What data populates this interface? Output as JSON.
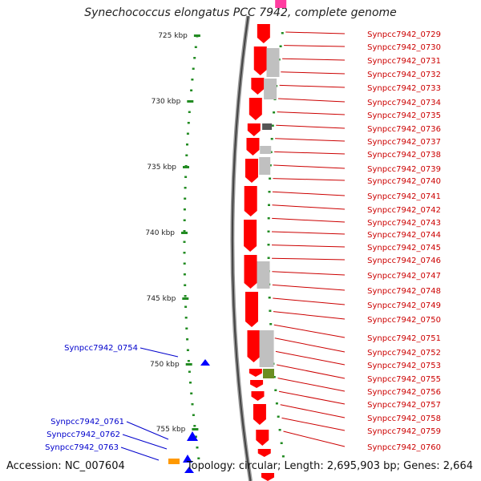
{
  "title": "Synechococcus elongatus PCC 7942, complete genome",
  "footer": {
    "accession": "Accession: NC_007604",
    "summary": "Topology: circular; Length: 2,695,903 bp; Genes: 2,664"
  },
  "colors": {
    "forward_cds": "#ff0000",
    "gray_feature": "#c0c0c0",
    "dark_feature": "#555555",
    "olive_feature": "#6b8e23",
    "reverse_cds": "#0000ff",
    "orange_feature": "#ff9900",
    "magenta_feature": "#ff3ca0",
    "green_ticks": "#228b22",
    "label_right": "#cc0000",
    "label_left": "#0000cc"
  },
  "scale_labels": [
    "725 kbp",
    "730 kbp",
    "735 kbp",
    "740 kbp",
    "745 kbp",
    "750 kbp",
    "755 kbp"
  ],
  "right_labels": [
    "Synpcc7942_0729",
    "Synpcc7942_0730",
    "Synpcc7942_0731",
    "Synpcc7942_0732",
    "Synpcc7942_0733",
    "Synpcc7942_0734",
    "Synpcc7942_0735",
    "Synpcc7942_0736",
    "Synpcc7942_0737",
    "Synpcc7942_0738",
    "Synpcc7942_0739",
    "Synpcc7942_0740",
    "Synpcc7942_0741",
    "Synpcc7942_0742",
    "Synpcc7942_0743",
    "Synpcc7942_0744",
    "Synpcc7942_0745",
    "Synpcc7942_0746",
    "Synpcc7942_0747",
    "Synpcc7942_0748",
    "Synpcc7942_0749",
    "Synpcc7942_0750",
    "Synpcc7942_0751",
    "Synpcc7942_0752",
    "Synpcc7942_0753",
    "Synpcc7942_0755",
    "Synpcc7942_0756",
    "Synpcc7942_0757",
    "Synpcc7942_0758",
    "Synpcc7942_0759",
    "Synpcc7942_0760"
  ],
  "left_labels": [
    "Synpcc7942_0754",
    "Synpcc7942_0761",
    "Synpcc7942_0762",
    "Synpcc7942_0763"
  ]
}
